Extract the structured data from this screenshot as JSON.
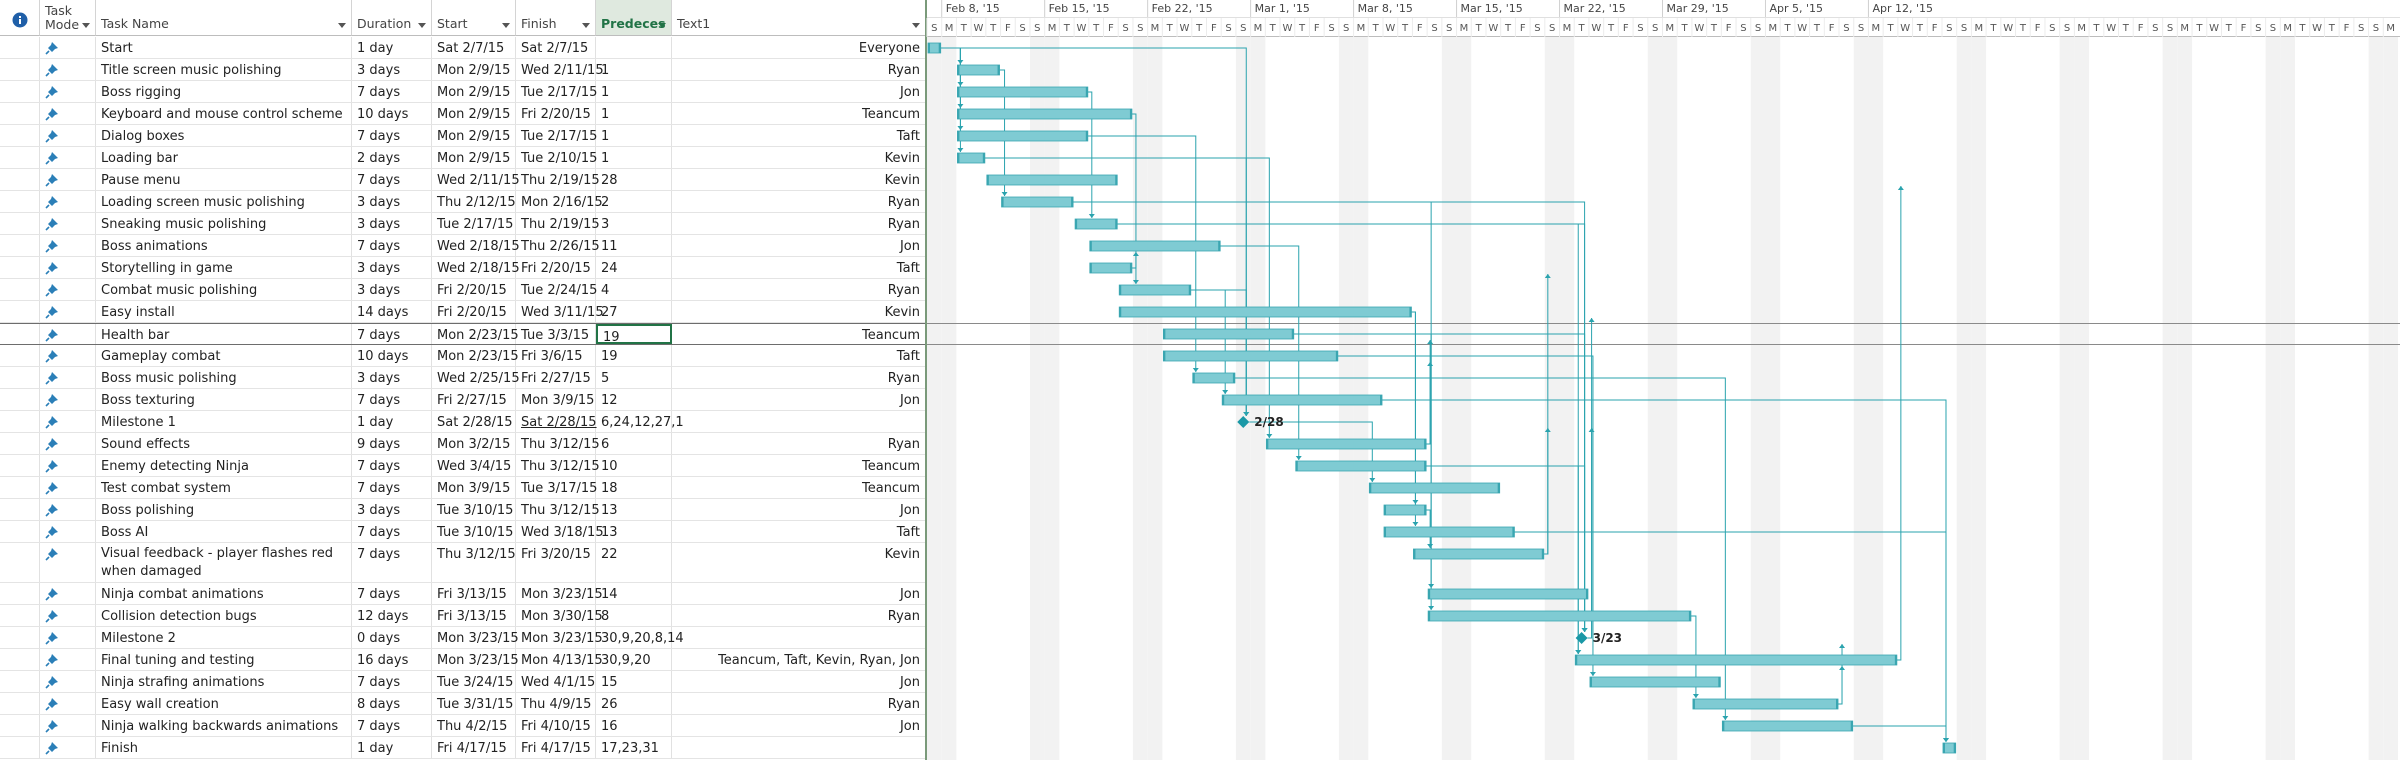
{
  "columns": {
    "task_mode": "Task Mode",
    "task_name": "Task Name",
    "duration": "Duration",
    "start": "Start",
    "finish": "Finish",
    "predecessors": "Predeces",
    "text1": "Text1"
  },
  "timescale": {
    "weeks": [
      "Feb 8, '15",
      "Feb 15, '15",
      "Feb 22, '15",
      "Mar 1, '15",
      "Mar 8, '15",
      "Mar 15, '15",
      "Mar 22, '15",
      "Mar 29, '15",
      "Apr 5, '15",
      "Apr 12, '15"
    ],
    "day_letters": [
      "S",
      "M",
      "T",
      "W",
      "T",
      "F",
      "S"
    ]
  },
  "tasks": [
    {
      "name": "Start",
      "duration": "1 day",
      "start": "Sat 2/7/15",
      "finish": "Sat 2/7/15",
      "pred": "",
      "text1": "Everyone"
    },
    {
      "name": "Title screen music polishing",
      "duration": "3 days",
      "start": "Mon 2/9/15",
      "finish": "Wed 2/11/15",
      "pred": "1",
      "text1": "Ryan"
    },
    {
      "name": "Boss rigging",
      "duration": "7 days",
      "start": "Mon 2/9/15",
      "finish": "Tue 2/17/15",
      "pred": "1",
      "text1": "Jon"
    },
    {
      "name": "Keyboard and mouse control scheme",
      "duration": "10 days",
      "start": "Mon 2/9/15",
      "finish": "Fri 2/20/15",
      "pred": "1",
      "text1": "Teancum"
    },
    {
      "name": "Dialog boxes",
      "duration": "7 days",
      "start": "Mon 2/9/15",
      "finish": "Tue 2/17/15",
      "pred": "1",
      "text1": "Taft"
    },
    {
      "name": "Loading bar",
      "duration": "2 days",
      "start": "Mon 2/9/15",
      "finish": "Tue 2/10/15",
      "pred": "1",
      "text1": "Kevin"
    },
    {
      "name": "Pause menu",
      "duration": "7 days",
      "start": "Wed 2/11/15",
      "finish": "Thu 2/19/15",
      "pred": "28",
      "text1": "Kevin"
    },
    {
      "name": "Loading screen music polishing",
      "duration": "3 days",
      "start": "Thu 2/12/15",
      "finish": "Mon 2/16/15",
      "pred": "2",
      "text1": "Ryan"
    },
    {
      "name": "Sneaking music polishing",
      "duration": "3 days",
      "start": "Tue 2/17/15",
      "finish": "Thu 2/19/15",
      "pred": "3",
      "text1": "Ryan"
    },
    {
      "name": "Boss animations",
      "duration": "7 days",
      "start": "Wed 2/18/15",
      "finish": "Thu 2/26/15",
      "pred": "11",
      "text1": "Jon"
    },
    {
      "name": "Storytelling in game",
      "duration": "3 days",
      "start": "Wed 2/18/15",
      "finish": "Fri 2/20/15",
      "pred": "24",
      "text1": "Taft"
    },
    {
      "name": "Combat music polishing",
      "duration": "3 days",
      "start": "Fri 2/20/15",
      "finish": "Tue 2/24/15",
      "pred": "4",
      "text1": "Ryan"
    },
    {
      "name": "Easy install",
      "duration": "14 days",
      "start": "Fri 2/20/15",
      "finish": "Wed 3/11/15",
      "pred": "27",
      "text1": "Kevin"
    },
    {
      "name": "Health bar",
      "duration": "7 days",
      "start": "Mon 2/23/15",
      "finish": "Tue 3/3/15",
      "pred": "19",
      "text1": "Teancum"
    },
    {
      "name": "Gameplay combat",
      "duration": "10 days",
      "start": "Mon 2/23/15",
      "finish": "Fri 3/6/15",
      "pred": "19",
      "text1": "Taft"
    },
    {
      "name": "Boss music polishing",
      "duration": "3 days",
      "start": "Wed 2/25/15",
      "finish": "Fri 2/27/15",
      "pred": "5",
      "text1": "Ryan"
    },
    {
      "name": "Boss texturing",
      "duration": "7 days",
      "start": "Fri 2/27/15",
      "finish": "Mon 3/9/15",
      "pred": "12",
      "text1": "Jon"
    },
    {
      "name": "Milestone 1",
      "duration": "1 day",
      "start": "Sat 2/28/15",
      "finish": "Sat 2/28/15",
      "pred": "6,24,12,27,1",
      "text1": ""
    },
    {
      "name": "Sound effects",
      "duration": "9 days",
      "start": "Mon 3/2/15",
      "finish": "Thu 3/12/15",
      "pred": "6",
      "text1": "Ryan"
    },
    {
      "name": "Enemy detecting Ninja",
      "duration": "7 days",
      "start": "Wed 3/4/15",
      "finish": "Thu 3/12/15",
      "pred": "10",
      "text1": "Teancum"
    },
    {
      "name": "Test combat system",
      "duration": "7 days",
      "start": "Mon 3/9/15",
      "finish": "Tue 3/17/15",
      "pred": "18",
      "text1": "Teancum"
    },
    {
      "name": "Boss polishing",
      "duration": "3 days",
      "start": "Tue 3/10/15",
      "finish": "Thu 3/12/15",
      "pred": "13",
      "text1": "Jon"
    },
    {
      "name": "Boss AI",
      "duration": "7 days",
      "start": "Tue 3/10/15",
      "finish": "Wed 3/18/15",
      "pred": "13",
      "text1": "Taft"
    },
    {
      "name": "Visual feedback - player flashes red when damaged",
      "duration": "7 days",
      "start": "Thu 3/12/15",
      "finish": "Fri 3/20/15",
      "pred": "22",
      "text1": "Kevin"
    },
    {
      "name": "Ninja combat animations",
      "duration": "7 days",
      "start": "Fri 3/13/15",
      "finish": "Mon 3/23/15",
      "pred": "14",
      "text1": "Jon"
    },
    {
      "name": "Collision detection bugs",
      "duration": "12 days",
      "start": "Fri 3/13/15",
      "finish": "Mon 3/30/15",
      "pred": "8",
      "text1": "Ryan"
    },
    {
      "name": "Milestone 2",
      "duration": "0 days",
      "start": "Mon 3/23/15",
      "finish": "Mon 3/23/15",
      "pred": "30,9,20,8,14",
      "text1": ""
    },
    {
      "name": "Final tuning and testing",
      "duration": "16 days",
      "start": "Mon 3/23/15",
      "finish": "Mon 4/13/15",
      "pred": "30,9,20",
      "text1": "Teancum, Taft, Kevin, Ryan, Jon"
    },
    {
      "name": "Ninja strafing animations",
      "duration": "7 days",
      "start": "Tue 3/24/15",
      "finish": "Wed 4/1/15",
      "pred": "15",
      "text1": "Jon"
    },
    {
      "name": "Easy wall creation",
      "duration": "8 days",
      "start": "Tue 3/31/15",
      "finish": "Thu 4/9/15",
      "pred": "26",
      "text1": "Ryan"
    },
    {
      "name": "Ninja walking backwards animations",
      "duration": "7 days",
      "start": "Thu 4/2/15",
      "finish": "Fri 4/10/15",
      "pred": "16",
      "text1": "Jon"
    },
    {
      "name": "Finish",
      "duration": "1 day",
      "start": "Fri 4/17/15",
      "finish": "Fri 4/17/15",
      "pred": "17,23,31",
      "text1": ""
    }
  ],
  "milestone_labels": {
    "17": "2/28",
    "26": "3/23"
  },
  "colors": {
    "bar": "#7fcbd3",
    "bar_edge": "#3aa6b1",
    "link": "#2aa3ae",
    "shade": "#f2f2f2",
    "selected_header": "#217346"
  }
}
